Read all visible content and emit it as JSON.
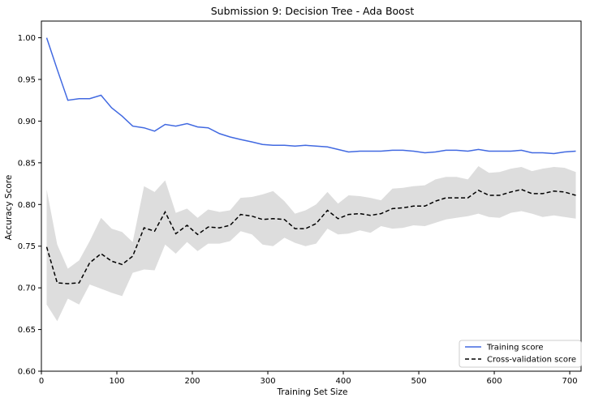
{
  "chart_data": {
    "type": "line",
    "title": "Submission 9: Decision Tree - Ada Boost",
    "xlabel": "Training Set Size",
    "ylabel": "Accuracy Score",
    "xlim": [
      0,
      715
    ],
    "ylim": [
      0.6,
      1.02
    ],
    "xticks": [
      0,
      100,
      200,
      300,
      400,
      500,
      600,
      700
    ],
    "xtick_labels": [
      "0",
      "100",
      "200",
      "300",
      "400",
      "500",
      "600",
      "700"
    ],
    "yticks": [
      0.6,
      0.65,
      0.7,
      0.75,
      0.8,
      0.85,
      0.9,
      0.95,
      1.0
    ],
    "ytick_labels": [
      "0.60",
      "0.65",
      "0.70",
      "0.75",
      "0.80",
      "0.85",
      "0.90",
      "0.95",
      "1.00"
    ],
    "grid": false,
    "legend_position": "lower-right",
    "x": [
      7,
      21,
      35,
      50,
      64,
      79,
      93,
      107,
      121,
      136,
      150,
      164,
      178,
      193,
      207,
      221,
      236,
      250,
      264,
      279,
      293,
      307,
      322,
      336,
      350,
      364,
      379,
      393,
      407,
      422,
      436,
      450,
      465,
      479,
      493,
      508,
      522,
      536,
      550,
      565,
      579,
      593,
      607,
      622,
      636,
      650,
      664,
      679,
      693,
      708
    ],
    "series": [
      {
        "name": "Training score",
        "color": "#4169e1",
        "style": "solid",
        "values": [
          1.0,
          0.962,
          0.925,
          0.927,
          0.927,
          0.931,
          0.916,
          0.906,
          0.894,
          0.892,
          0.888,
          0.896,
          0.894,
          0.897,
          0.893,
          0.892,
          0.885,
          0.881,
          0.878,
          0.875,
          0.872,
          0.871,
          0.871,
          0.87,
          0.871,
          0.87,
          0.869,
          0.866,
          0.863,
          0.864,
          0.864,
          0.864,
          0.865,
          0.865,
          0.864,
          0.862,
          0.863,
          0.865,
          0.865,
          0.864,
          0.866,
          0.864,
          0.864,
          0.864,
          0.865,
          0.862,
          0.862,
          0.861,
          0.863,
          0.864
        ]
      },
      {
        "name": "Cross-validation score",
        "color": "#000000",
        "style": "dashed",
        "values": [
          0.749,
          0.706,
          0.705,
          0.706,
          0.73,
          0.741,
          0.732,
          0.728,
          0.738,
          0.772,
          0.768,
          0.791,
          0.765,
          0.775,
          0.764,
          0.773,
          0.772,
          0.775,
          0.788,
          0.786,
          0.782,
          0.783,
          0.782,
          0.771,
          0.771,
          0.777,
          0.793,
          0.783,
          0.788,
          0.789,
          0.787,
          0.789,
          0.795,
          0.796,
          0.798,
          0.798,
          0.804,
          0.808,
          0.808,
          0.808,
          0.817,
          0.811,
          0.811,
          0.815,
          0.818,
          0.813,
          0.813,
          0.816,
          0.815,
          0.811
        ],
        "band_upper": [
          0.818,
          0.752,
          0.723,
          0.733,
          0.756,
          0.784,
          0.771,
          0.767,
          0.755,
          0.822,
          0.815,
          0.829,
          0.79,
          0.795,
          0.784,
          0.794,
          0.791,
          0.793,
          0.808,
          0.809,
          0.812,
          0.816,
          0.804,
          0.789,
          0.793,
          0.8,
          0.815,
          0.801,
          0.811,
          0.81,
          0.808,
          0.805,
          0.819,
          0.82,
          0.822,
          0.823,
          0.83,
          0.833,
          0.833,
          0.83,
          0.846,
          0.838,
          0.839,
          0.843,
          0.845,
          0.84,
          0.843,
          0.845,
          0.844,
          0.839
        ],
        "band_lower": [
          0.68,
          0.66,
          0.687,
          0.68,
          0.704,
          0.699,
          0.694,
          0.69,
          0.718,
          0.722,
          0.721,
          0.752,
          0.741,
          0.755,
          0.744,
          0.753,
          0.753,
          0.756,
          0.768,
          0.764,
          0.752,
          0.75,
          0.76,
          0.754,
          0.75,
          0.753,
          0.771,
          0.764,
          0.765,
          0.769,
          0.766,
          0.774,
          0.771,
          0.772,
          0.775,
          0.774,
          0.778,
          0.782,
          0.784,
          0.786,
          0.789,
          0.785,
          0.784,
          0.79,
          0.792,
          0.789,
          0.785,
          0.787,
          0.785,
          0.783
        ],
        "band_color": "#dddddd"
      }
    ]
  }
}
